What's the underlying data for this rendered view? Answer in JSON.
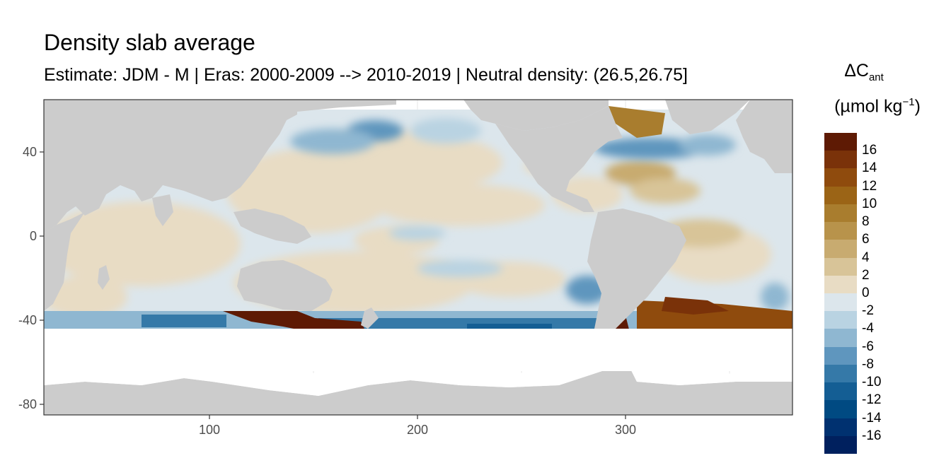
{
  "title": "Density slab average",
  "subtitle": "Estimate: JDM - M | Eras: 2000-2009 --> 2010-2019 | Neutral density: (26.5,26.75]",
  "legend": {
    "title_main": "ΔC",
    "title_sub": "ant",
    "unit_prefix": "(µmol kg",
    "unit_sup": "−1",
    "unit_suffix": ")",
    "colors": [
      "#5e1a04",
      "#7a3209",
      "#8f4b0d",
      "#9b6416",
      "#a97d2e",
      "#b8934b",
      "#c8ab70",
      "#d8c498",
      "#e8dcc4",
      "#dce6ec",
      "#b9d3e2",
      "#8fb7d1",
      "#5f96be",
      "#3579a8",
      "#145e94",
      "#004a82",
      "#003170",
      "#00205e"
    ],
    "labels": [
      "16",
      "14",
      "12",
      "10",
      "8",
      "6",
      "4",
      "2",
      "0",
      "-2",
      "-4",
      "-6",
      "-8",
      "-10",
      "-12",
      "-14",
      "-16"
    ]
  },
  "axes": {
    "x_ticks": [
      "100",
      "200",
      "300"
    ],
    "y_ticks": [
      "40",
      "0",
      "-40",
      "-80"
    ]
  },
  "colors": {
    "land": "#cccccc",
    "panel_border": "#333333",
    "grid": "#ebebeb"
  }
}
